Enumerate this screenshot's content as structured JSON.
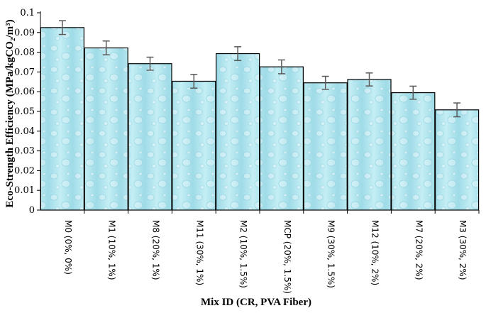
{
  "chart_data": {
    "type": "bar",
    "xlabel": "Mix ID (CR, PVA Fiber)",
    "ylabel": "Eco-Strength Efficiency (MPa/kgCO₂/m³)",
    "ylim": [
      0,
      0.1
    ],
    "ytick_labels": [
      "0",
      "0.01",
      "0.02",
      "0.03",
      "0.04",
      "0.05",
      "0.06",
      "0.07",
      "0.08",
      "0.09",
      "0.1"
    ],
    "categories": [
      "M0 (0%, 0%)",
      "M1 (10%, 1%)",
      "M8 (20%, 1%)",
      "M11 (30%, 1%)",
      "M2 (10%, 1.5%)",
      "MCP (20%, 1.5%)",
      "M9 (30%, 1.5%)",
      "M12 (10%, 2%)",
      "M7 (20%, 2%)",
      "M3 (30%, 2%)"
    ],
    "values": [
      0.0925,
      0.0822,
      0.0742,
      0.0653,
      0.0793,
      0.0726,
      0.0645,
      0.0662,
      0.0595,
      0.0508
    ],
    "error": [
      0.0035,
      0.0035,
      0.0033,
      0.0035,
      0.0035,
      0.0035,
      0.0033,
      0.0033,
      0.0033,
      0.0035
    ],
    "grid": false,
    "legend": "none",
    "bar_fill": "#aee4ee",
    "bar_stroke": "#000000",
    "errorbar_color": "#5a5a5a"
  }
}
